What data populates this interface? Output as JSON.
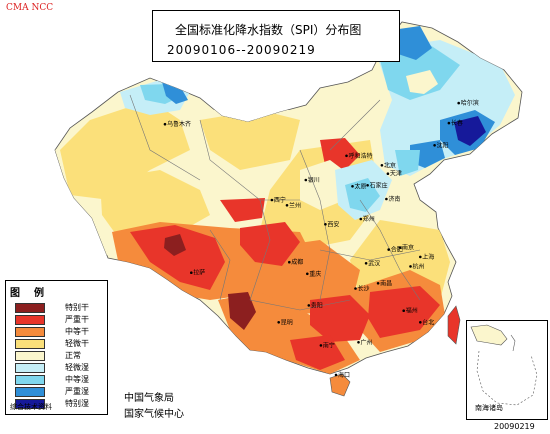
{
  "brand": "CMA NCC",
  "title": "全国标准化降水指数（SPI）分布图",
  "period": "20090106--20090219",
  "legend": {
    "title": "图例",
    "items": [
      {
        "label": "特别干",
        "color": "#8c1f1f"
      },
      {
        "label": "严重干",
        "color": "#e8352a"
      },
      {
        "label": "中等干",
        "color": "#f58b3c"
      },
      {
        "label": "轻微干",
        "color": "#fbe07a"
      },
      {
        "label": "正常",
        "color": "#fbf6cd"
      },
      {
        "label": "轻微湿",
        "color": "#c5eef7"
      },
      {
        "label": "中等湿",
        "color": "#7fd7ee"
      },
      {
        "label": "严重湿",
        "color": "#2f8fd8"
      },
      {
        "label": "特别湿",
        "color": "#16199a"
      }
    ],
    "source": "综合技术资料"
  },
  "agency": [
    "中国气象局",
    "国家气候中心"
  ],
  "inset_label": "南海诸岛",
  "stamp": "20090219",
  "cities": [
    {
      "name": "乌鲁木齐",
      "lng": 87.6,
      "lat": 43.8
    },
    {
      "name": "哈尔滨",
      "lng": 126.6,
      "lat": 45.8
    },
    {
      "name": "长春",
      "lng": 125.3,
      "lat": 43.9
    },
    {
      "name": "沈阳",
      "lng": 123.4,
      "lat": 41.8
    },
    {
      "name": "呼和浩特",
      "lng": 111.7,
      "lat": 40.8
    },
    {
      "name": "北京",
      "lng": 116.4,
      "lat": 39.9
    },
    {
      "name": "天津",
      "lng": 117.2,
      "lat": 39.1
    },
    {
      "name": "石家庄",
      "lng": 114.5,
      "lat": 38.0
    },
    {
      "name": "太原",
      "lng": 112.5,
      "lat": 37.9
    },
    {
      "name": "济南",
      "lng": 117.0,
      "lat": 36.7
    },
    {
      "name": "银川",
      "lng": 106.3,
      "lat": 38.5
    },
    {
      "name": "西宁",
      "lng": 101.8,
      "lat": 36.6
    },
    {
      "name": "兰州",
      "lng": 103.8,
      "lat": 36.1
    },
    {
      "name": "西安",
      "lng": 108.9,
      "lat": 34.3
    },
    {
      "name": "郑州",
      "lng": 113.6,
      "lat": 34.8
    },
    {
      "name": "南京",
      "lng": 118.8,
      "lat": 32.1
    },
    {
      "name": "合肥",
      "lng": 117.3,
      "lat": 31.9
    },
    {
      "name": "上海",
      "lng": 121.5,
      "lat": 31.2
    },
    {
      "name": "武汉",
      "lng": 114.3,
      "lat": 30.6
    },
    {
      "name": "杭州",
      "lng": 120.2,
      "lat": 30.3
    },
    {
      "name": "成都",
      "lng": 104.1,
      "lat": 30.7
    },
    {
      "name": "重庆",
      "lng": 106.5,
      "lat": 29.6
    },
    {
      "name": "拉萨",
      "lng": 91.1,
      "lat": 29.7
    },
    {
      "name": "长沙",
      "lng": 112.9,
      "lat": 28.2
    },
    {
      "name": "南昌",
      "lng": 115.9,
      "lat": 28.7
    },
    {
      "name": "贵阳",
      "lng": 106.7,
      "lat": 26.6
    },
    {
      "name": "福州",
      "lng": 119.3,
      "lat": 26.1
    },
    {
      "name": "昆明",
      "lng": 102.7,
      "lat": 25.0
    },
    {
      "name": "台北",
      "lng": 121.5,
      "lat": 25.0
    },
    {
      "name": "南宁",
      "lng": 108.3,
      "lat": 22.8
    },
    {
      "name": "广州",
      "lng": 113.3,
      "lat": 23.1
    },
    {
      "name": "海口",
      "lng": 110.3,
      "lat": 20.0
    }
  ]
}
